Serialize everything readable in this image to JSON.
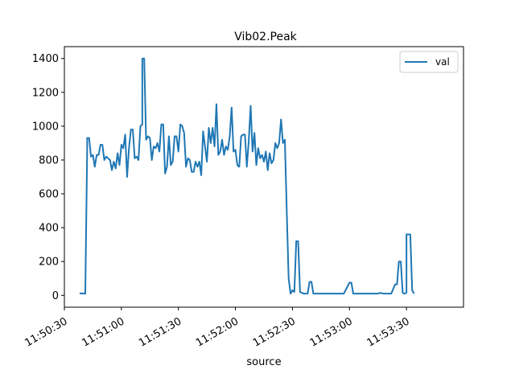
{
  "chart_data": {
    "type": "line",
    "title": "Vib02.Peak",
    "xlabel": "source",
    "ylabel": "",
    "x_start": "11:50:30",
    "x_tick_labels": [
      "11:50:30",
      "11:51:00",
      "11:51:30",
      "11:52:00",
      "11:52:30",
      "11:53:00",
      "11:53:30"
    ],
    "xlim": [
      "11:50:30",
      "11:54:00"
    ],
    "y_ticks": [
      0,
      200,
      400,
      600,
      800,
      1000,
      1200,
      1400
    ],
    "ylim": [
      -70,
      1470
    ],
    "grid": false,
    "legend_position": "top-right",
    "series": [
      {
        "name": "val",
        "color": "#1f77b4",
        "points": [
          [
            "11:50:38",
            12
          ],
          [
            "11:50:41",
            10
          ],
          [
            "11:50:42",
            860
          ],
          [
            "11:50:42",
            930
          ],
          [
            "11:50:43",
            930
          ],
          [
            "11:50:44",
            820
          ],
          [
            "11:50:45",
            830
          ],
          [
            "11:50:46",
            760
          ],
          [
            "11:50:47",
            830
          ],
          [
            "11:50:48",
            830
          ],
          [
            "11:50:49",
            890
          ],
          [
            "11:50:50",
            890
          ],
          [
            "11:50:51",
            800
          ],
          [
            "11:50:52",
            820
          ],
          [
            "11:50:53",
            810
          ],
          [
            "11:50:54",
            800
          ],
          [
            "11:50:55",
            740
          ],
          [
            "11:50:56",
            790
          ],
          [
            "11:50:57",
            750
          ],
          [
            "11:50:58",
            840
          ],
          [
            "11:50:59",
            770
          ],
          [
            "11:51:00",
            890
          ],
          [
            "11:51:01",
            870
          ],
          [
            "11:51:02",
            950
          ],
          [
            "11:51:03",
            700
          ],
          [
            "11:51:04",
            870
          ],
          [
            "11:51:05",
            980
          ],
          [
            "11:51:06",
            980
          ],
          [
            "11:51:07",
            810
          ],
          [
            "11:51:08",
            820
          ],
          [
            "11:51:09",
            800
          ],
          [
            "11:51:10",
            1000
          ],
          [
            "11:51:11",
            1010
          ],
          [
            "11:51:11",
            1400
          ],
          [
            "11:51:12",
            1400
          ],
          [
            "11:51:13",
            920
          ],
          [
            "11:51:14",
            940
          ],
          [
            "11:51:15",
            930
          ],
          [
            "11:51:16",
            800
          ],
          [
            "11:51:17",
            880
          ],
          [
            "11:51:18",
            870
          ],
          [
            "11:51:19",
            900
          ],
          [
            "11:51:20",
            850
          ],
          [
            "11:51:21",
            1010
          ],
          [
            "11:51:22",
            1010
          ],
          [
            "11:51:23",
            720
          ],
          [
            "11:51:24",
            760
          ],
          [
            "11:51:25",
            940
          ],
          [
            "11:51:26",
            770
          ],
          [
            "11:51:27",
            790
          ],
          [
            "11:51:28",
            940
          ],
          [
            "11:51:29",
            940
          ],
          [
            "11:51:30",
            850
          ],
          [
            "11:51:31",
            1010
          ],
          [
            "11:51:32",
            1000
          ],
          [
            "11:51:33",
            960
          ],
          [
            "11:51:34",
            760
          ],
          [
            "11:51:35",
            810
          ],
          [
            "11:51:36",
            800
          ],
          [
            "11:51:37",
            730
          ],
          [
            "11:51:38",
            730
          ],
          [
            "11:51:39",
            790
          ],
          [
            "11:51:40",
            760
          ],
          [
            "11:51:41",
            790
          ],
          [
            "11:51:42",
            710
          ],
          [
            "11:51:43",
            970
          ],
          [
            "11:51:44",
            880
          ],
          [
            "11:51:45",
            790
          ],
          [
            "11:51:46",
            990
          ],
          [
            "11:51:47",
            900
          ],
          [
            "11:51:48",
            990
          ],
          [
            "11:51:49",
            880
          ],
          [
            "11:51:50",
            1130
          ],
          [
            "11:51:51",
            830
          ],
          [
            "11:51:52",
            850
          ],
          [
            "11:51:53",
            920
          ],
          [
            "11:51:54",
            830
          ],
          [
            "11:51:55",
            880
          ],
          [
            "11:51:56",
            860
          ],
          [
            "11:51:57",
            940
          ],
          [
            "11:51:58",
            1110
          ],
          [
            "11:51:59",
            850
          ],
          [
            "11:52:00",
            860
          ],
          [
            "11:52:01",
            770
          ],
          [
            "11:52:02",
            760
          ],
          [
            "11:52:03",
            940
          ],
          [
            "11:52:04",
            950
          ],
          [
            "11:52:05",
            950
          ],
          [
            "11:52:06",
            760
          ],
          [
            "11:52:07",
            910
          ],
          [
            "11:52:08",
            1120
          ],
          [
            "11:52:09",
            850
          ],
          [
            "11:52:10",
            960
          ],
          [
            "11:52:11",
            770
          ],
          [
            "11:52:12",
            870
          ],
          [
            "11:52:13",
            810
          ],
          [
            "11:52:14",
            830
          ],
          [
            "11:52:15",
            790
          ],
          [
            "11:52:16",
            850
          ],
          [
            "11:52:17",
            740
          ],
          [
            "11:52:18",
            840
          ],
          [
            "11:52:19",
            780
          ],
          [
            "11:52:20",
            800
          ],
          [
            "11:52:21",
            900
          ],
          [
            "11:52:22",
            870
          ],
          [
            "11:52:23",
            900
          ],
          [
            "11:52:24",
            1040
          ],
          [
            "11:52:25",
            900
          ],
          [
            "11:52:26",
            920
          ],
          [
            "11:52:27",
            500
          ],
          [
            "11:52:28",
            100
          ],
          [
            "11:52:29",
            10
          ],
          [
            "11:52:30",
            30
          ],
          [
            "11:52:31",
            20
          ],
          [
            "11:52:32",
            320
          ],
          [
            "11:52:33",
            320
          ],
          [
            "11:52:34",
            20
          ],
          [
            "11:52:36",
            10
          ],
          [
            "11:52:38",
            10
          ],
          [
            "11:52:39",
            80
          ],
          [
            "11:52:40",
            80
          ],
          [
            "11:52:41",
            10
          ],
          [
            "11:52:45",
            10
          ],
          [
            "11:52:52",
            10
          ],
          [
            "11:52:57",
            10
          ],
          [
            "11:53:00",
            75
          ],
          [
            "11:53:01",
            75
          ],
          [
            "11:53:02",
            10
          ],
          [
            "11:53:08",
            10
          ],
          [
            "11:53:15",
            10
          ],
          [
            "11:53:16",
            15
          ],
          [
            "11:53:18",
            10
          ],
          [
            "11:53:22",
            10
          ],
          [
            "11:53:24",
            65
          ],
          [
            "11:53:25",
            65
          ],
          [
            "11:53:26",
            200
          ],
          [
            "11:53:27",
            200
          ],
          [
            "11:53:28",
            15
          ],
          [
            "11:53:29",
            10
          ],
          [
            "11:53:30",
            15
          ],
          [
            "11:53:30",
            360
          ],
          [
            "11:53:32",
            360
          ],
          [
            "11:53:33",
            30
          ],
          [
            "11:53:34",
            10
          ]
        ]
      }
    ]
  }
}
